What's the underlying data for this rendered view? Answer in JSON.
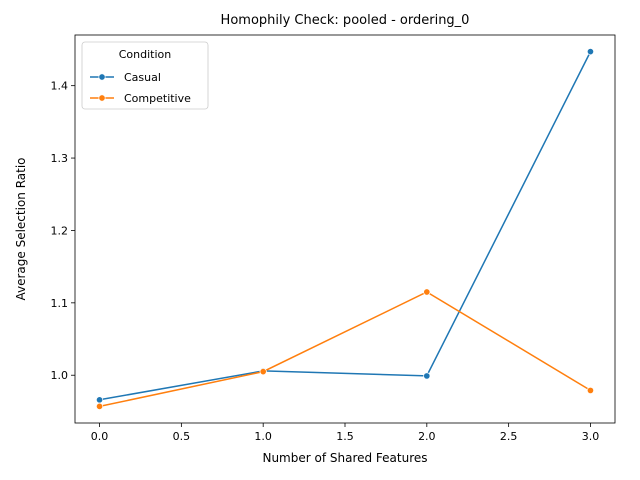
{
  "chart_data": {
    "type": "line",
    "title": "Homophily Check: pooled - ordering_0",
    "xlabel": "Number of Shared Features",
    "ylabel": "Average Selection Ratio",
    "x": [
      0,
      1,
      2,
      3
    ],
    "xlim": [
      -0.15,
      3.15
    ],
    "ylim": [
      0.934,
      1.47
    ],
    "xticks": [
      0.0,
      0.5,
      1.0,
      1.5,
      2.0,
      2.5,
      3.0
    ],
    "xtick_labels": [
      "0.0",
      "0.5",
      "1.0",
      "1.5",
      "2.0",
      "2.5",
      "3.0"
    ],
    "yticks": [
      1.0,
      1.1,
      1.2,
      1.3,
      1.4
    ],
    "ytick_labels": [
      "1.0",
      "1.1",
      "1.2",
      "1.3",
      "1.4"
    ],
    "grid": false,
    "legend": {
      "title": "Condition",
      "placement": "top-left"
    },
    "series": [
      {
        "name": "Casual",
        "color": "#1f77b4",
        "values": [
          0.966,
          1.006,
          0.999,
          1.447
        ]
      },
      {
        "name": "Competitive",
        "color": "#ff7f0e",
        "values": [
          0.957,
          1.005,
          1.115,
          0.979
        ]
      }
    ]
  }
}
